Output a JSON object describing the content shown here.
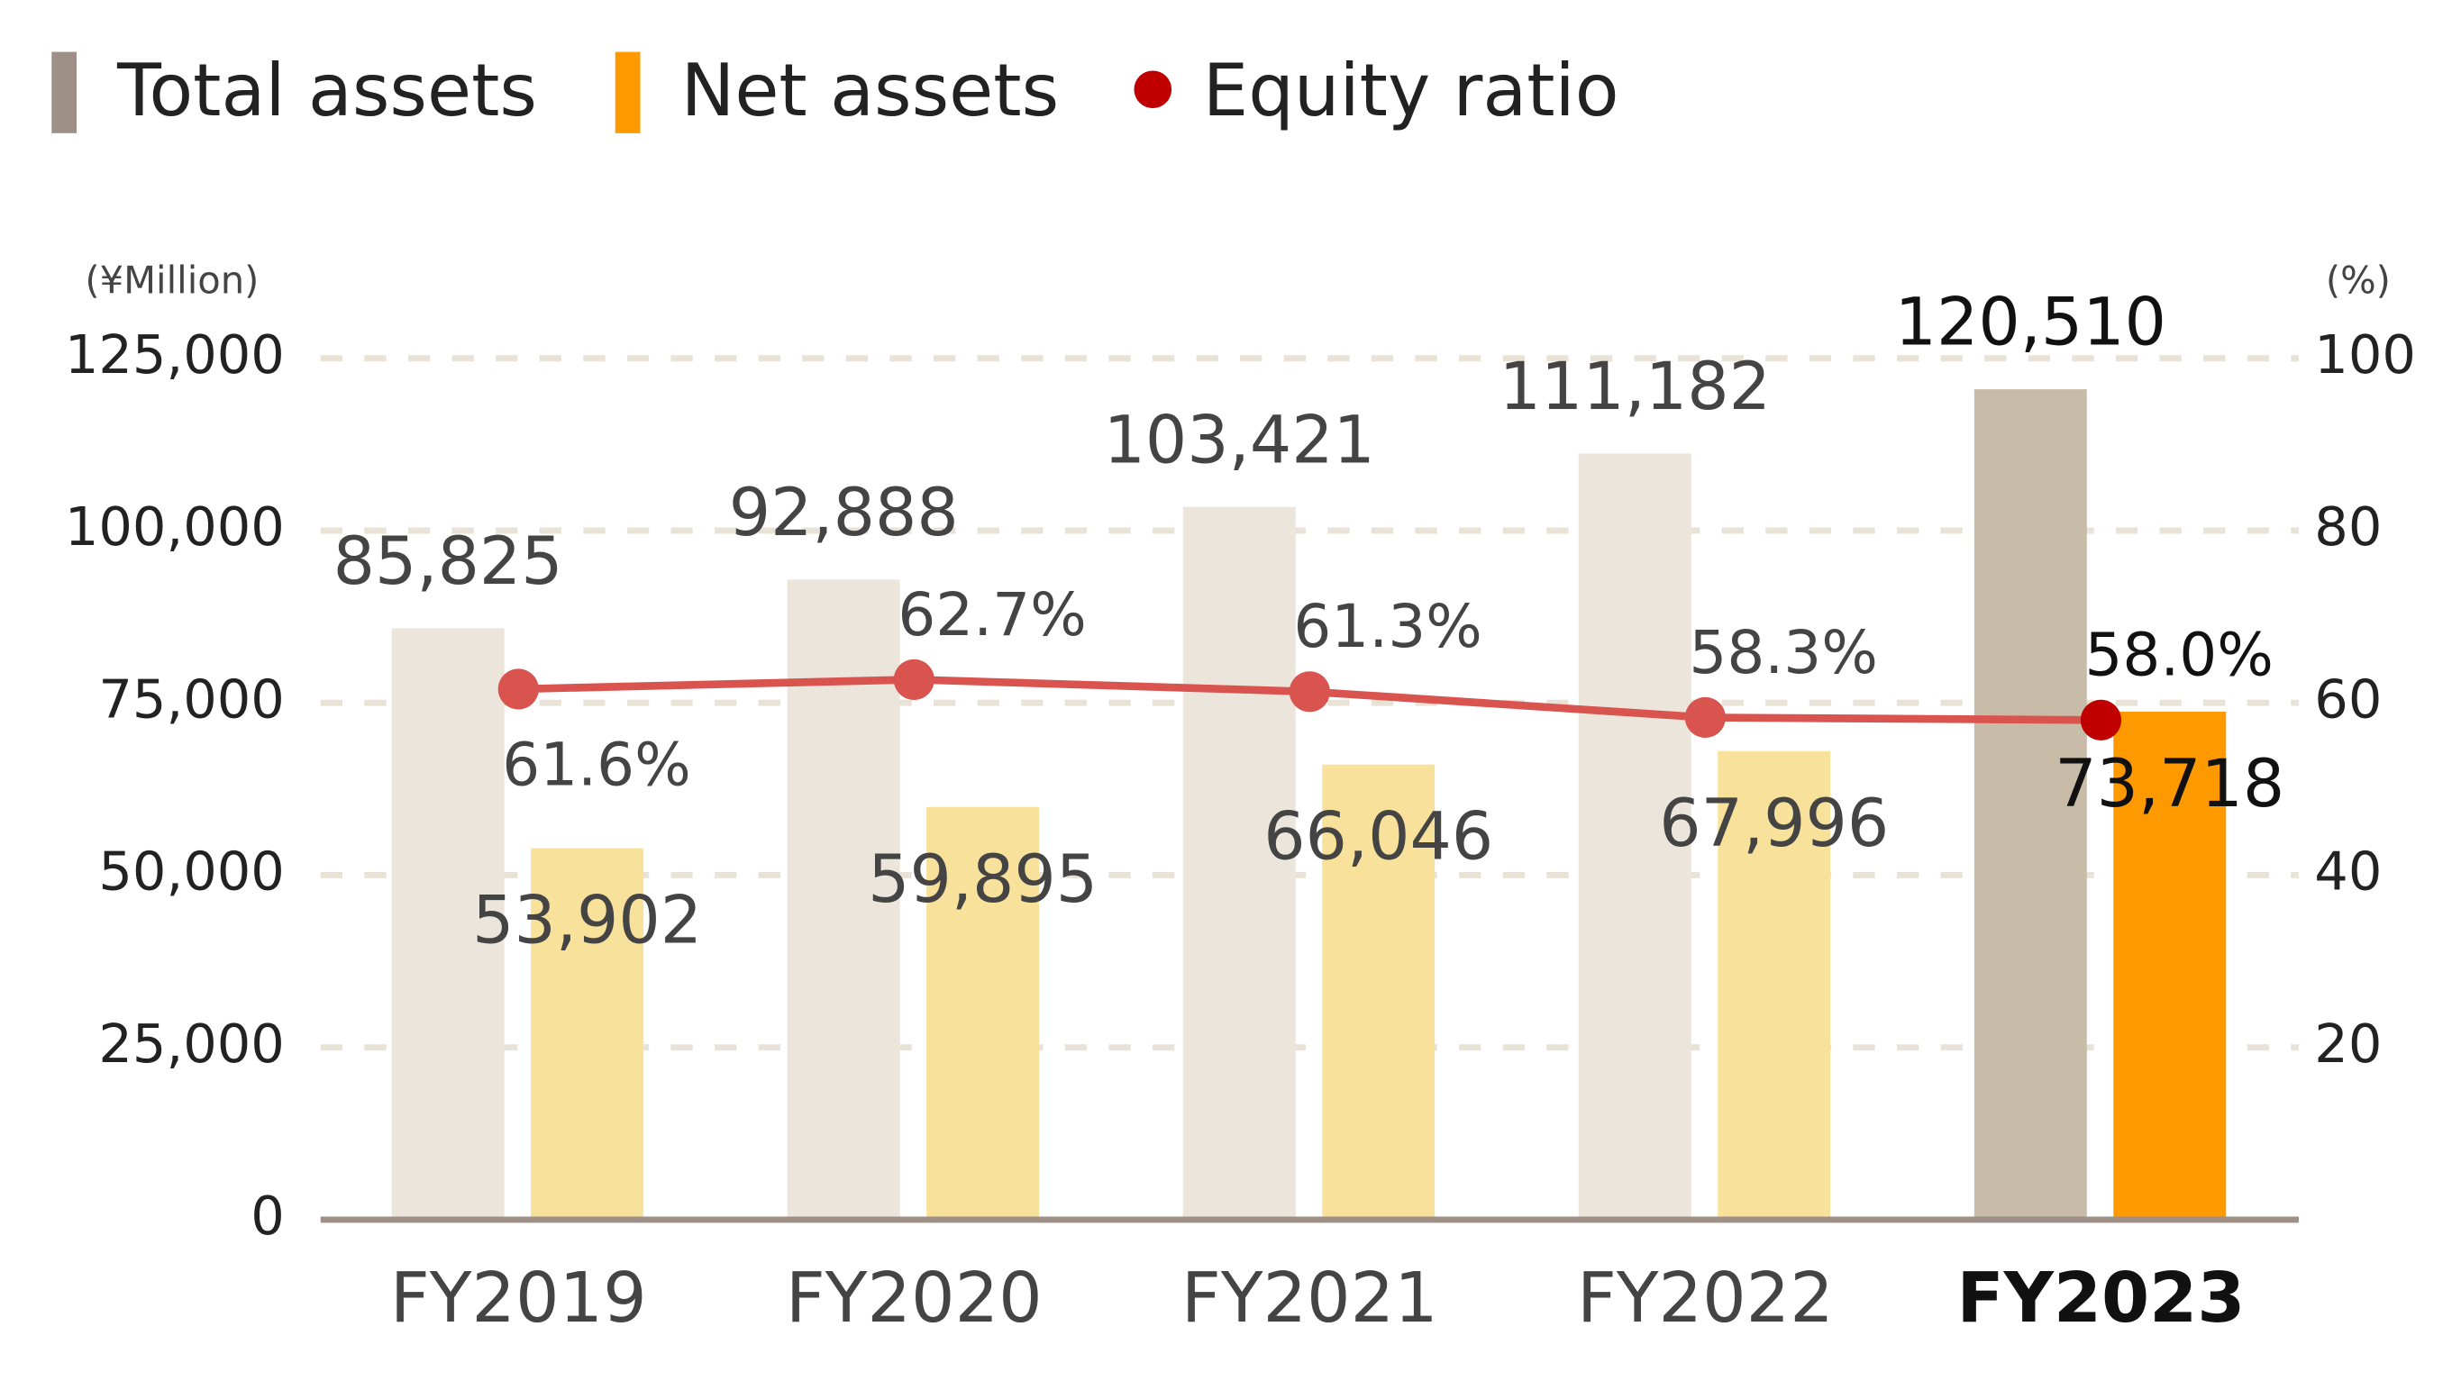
{
  "chart_data": {
    "type": "bar-line",
    "categories": [
      "FY2019",
      "FY2020",
      "FY2021",
      "FY2022",
      "FY2023"
    ],
    "series": [
      {
        "name": "Total assets",
        "type": "bar",
        "color": "#9e9087",
        "colors": [
          "#ebe5db",
          "#ebe5db",
          "#ebe5db",
          "#ebe5db",
          "#c8bca8"
        ],
        "values": [
          85825,
          92888,
          103421,
          111182,
          120510
        ],
        "value_labels": [
          "85,825",
          "92,888",
          "103,421",
          "111,182",
          "120,510"
        ]
      },
      {
        "name": "Net assets",
        "type": "bar",
        "color": "#ff9900",
        "colors": [
          "#f8e19b",
          "#f8e19b",
          "#f8e19b",
          "#f8e19b",
          "#ff9900"
        ],
        "values": [
          53902,
          59895,
          66046,
          67996,
          73718
        ],
        "value_labels": [
          "53,902",
          "59,895",
          "66,046",
          "67,996",
          "73,718"
        ]
      },
      {
        "name": "Equity ratio",
        "type": "line",
        "axis": "y2",
        "color": "#c00000",
        "line_color": "#d9534f",
        "marker_colors": [
          "#d9534f",
          "#d9534f",
          "#d9534f",
          "#d9534f",
          "#c00000"
        ],
        "values": [
          61.6,
          62.7,
          61.3,
          58.3,
          58.0
        ],
        "value_labels": [
          "61.6%",
          "62.7%",
          "61.3%",
          "58.3%",
          "58.0%"
        ]
      }
    ],
    "y_label": "(¥Million)",
    "y2_label": "(%)",
    "ylim": [
      0,
      125000
    ],
    "yticks": [
      0,
      {
        "value": 25000,
        "label": "25,000"
      },
      {
        "value": 50000,
        "label": "50,000"
      },
      {
        "value": 75000,
        "label": "75,000"
      },
      {
        "value": 100000,
        "label": "100,000"
      },
      {
        "value": 125000,
        "label": "125,000"
      }
    ],
    "y2lim": [
      0,
      100
    ],
    "y2ticks": [
      20,
      40,
      60,
      80,
      100
    ],
    "grid": true,
    "legend": "top-left"
  }
}
